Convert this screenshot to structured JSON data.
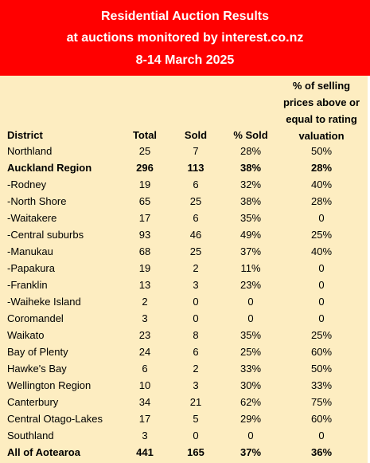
{
  "header": {
    "line1": "Residential Auction Results",
    "line2": "at auctions monitored by interest.co.nz",
    "line3": "8-14 March 2025"
  },
  "columns": {
    "district": "District",
    "total": "Total",
    "sold": "Sold",
    "pct_sold": "% Sold",
    "valuation_l1": "% of selling",
    "valuation_l2": "prices above or",
    "valuation_l3": "equal to rating",
    "valuation_l4": "valuation"
  },
  "rows": [
    {
      "district": "Northland",
      "total": "25",
      "sold": "7",
      "pct_sold": "28%",
      "valuation": "50%",
      "bold": false
    },
    {
      "district": "Auckland Region",
      "total": "296",
      "sold": "113",
      "pct_sold": "38%",
      "valuation": "28%",
      "bold": true
    },
    {
      "district": "-Rodney",
      "total": "19",
      "sold": "6",
      "pct_sold": "32%",
      "valuation": "40%",
      "bold": false
    },
    {
      "district": "-North Shore",
      "total": "65",
      "sold": "25",
      "pct_sold": "38%",
      "valuation": "28%",
      "bold": false
    },
    {
      "district": "-Waitakere",
      "total": "17",
      "sold": "6",
      "pct_sold": "35%",
      "valuation": "0",
      "bold": false
    },
    {
      "district": "-Central suburbs",
      "total": "93",
      "sold": "46",
      "pct_sold": "49%",
      "valuation": "25%",
      "bold": false
    },
    {
      "district": "-Manukau",
      "total": "68",
      "sold": "25",
      "pct_sold": "37%",
      "valuation": "40%",
      "bold": false
    },
    {
      "district": "-Papakura",
      "total": "19",
      "sold": "2",
      "pct_sold": "11%",
      "valuation": "0",
      "bold": false
    },
    {
      "district": "-Franklin",
      "total": "13",
      "sold": "3",
      "pct_sold": "23%",
      "valuation": "0",
      "bold": false
    },
    {
      "district": "-Waiheke Island",
      "total": "2",
      "sold": "0",
      "pct_sold": "0",
      "valuation": "0",
      "bold": false
    },
    {
      "district": "Coromandel",
      "total": "3",
      "sold": "0",
      "pct_sold": "0",
      "valuation": "0",
      "bold": false
    },
    {
      "district": "Waikato",
      "total": "23",
      "sold": "8",
      "pct_sold": "35%",
      "valuation": "25%",
      "bold": false
    },
    {
      "district": "Bay of Plenty",
      "total": "24",
      "sold": "6",
      "pct_sold": "25%",
      "valuation": "60%",
      "bold": false
    },
    {
      "district": "Hawke's Bay",
      "total": "6",
      "sold": "2",
      "pct_sold": "33%",
      "valuation": "50%",
      "bold": false
    },
    {
      "district": "Wellington Region",
      "total": "10",
      "sold": "3",
      "pct_sold": "30%",
      "valuation": "33%",
      "bold": false
    },
    {
      "district": "Canterbury",
      "total": "34",
      "sold": "21",
      "pct_sold": "62%",
      "valuation": "75%",
      "bold": false
    },
    {
      "district": "Central Otago-Lakes",
      "total": "17",
      "sold": "5",
      "pct_sold": "29%",
      "valuation": "60%",
      "bold": false
    },
    {
      "district": "Southland",
      "total": "3",
      "sold": "0",
      "pct_sold": "0",
      "valuation": "0",
      "bold": false
    },
    {
      "district": "All of Aotearoa",
      "total": "441",
      "sold": "165",
      "pct_sold": "37%",
      "valuation": "36%",
      "bold": true
    }
  ],
  "colors": {
    "header_bg": "#ff0000",
    "header_text": "#ffffff",
    "table_bg": "#fdedc1"
  }
}
